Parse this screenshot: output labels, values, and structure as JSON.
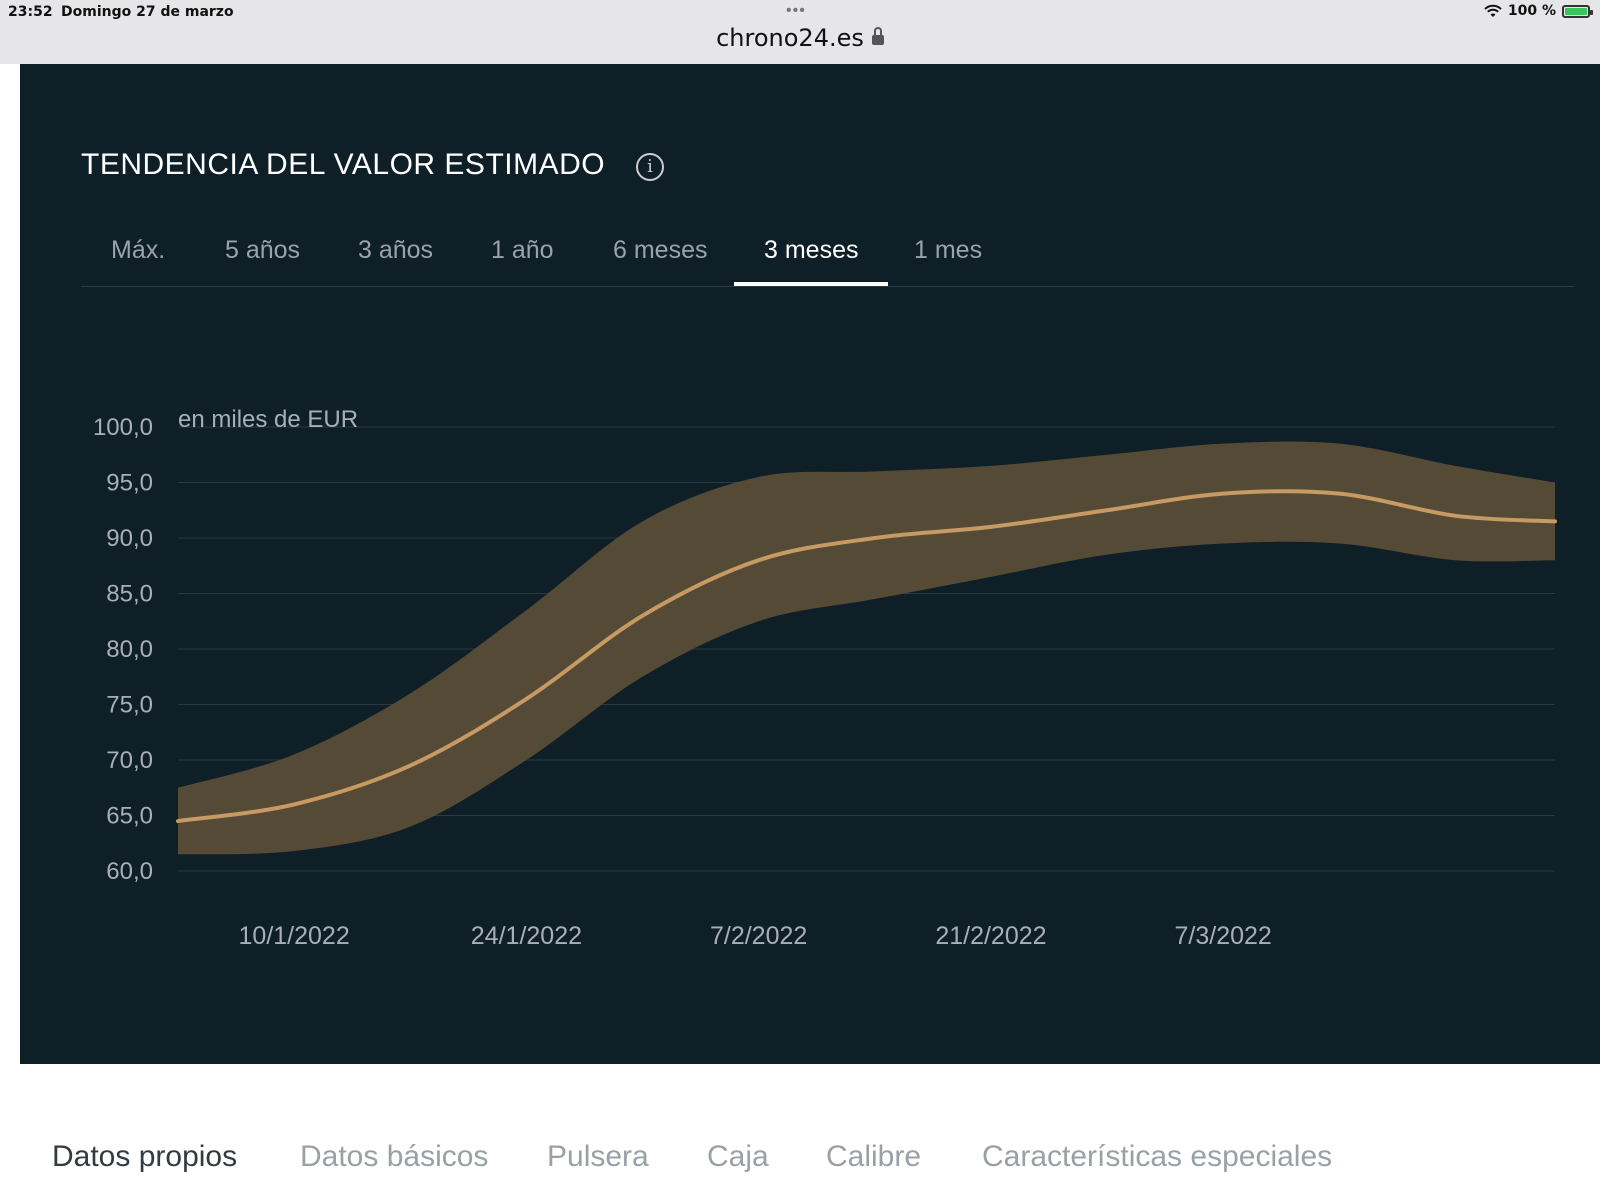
{
  "status_bar": {
    "time": "23:52",
    "date": "Domingo 27 de marzo",
    "battery": "100 %",
    "url": "chrono24.es"
  },
  "section": {
    "title": "TENDENCIA DEL VALOR ESTIMADO",
    "info_glyph": "i",
    "tabs": [
      "Máx.",
      "5 años",
      "3 años",
      "1 año",
      "6 meses",
      "3 meses",
      "1 mes"
    ],
    "active_tab": "3 meses"
  },
  "chart_data": {
    "type": "area",
    "unit_label": "en miles de EUR",
    "ylim": [
      60,
      100
    ],
    "y_ticks": [
      "100,0",
      "95,0",
      "90,0",
      "85,0",
      "80,0",
      "75,0",
      "70,0",
      "65,0",
      "60,0"
    ],
    "x_ticks": [
      "10/1/2022",
      "24/1/2022",
      "7/2/2022",
      "21/2/2022",
      "7/3/2022"
    ],
    "x_range_days": [
      -7,
      76
    ],
    "series": [
      {
        "role": "estimate",
        "x_days": [
          -7,
          0,
          7,
          14,
          21,
          28,
          35,
          42,
          49,
          56,
          63,
          70,
          76
        ],
        "values": [
          64.5,
          66.0,
          69.5,
          75.5,
          83.0,
          88.0,
          90.0,
          91.0,
          92.5,
          94.0,
          94.0,
          92.0,
          91.5
        ]
      },
      {
        "role": "upper_bound",
        "x_days": [
          -7,
          0,
          7,
          14,
          21,
          28,
          35,
          42,
          49,
          56,
          63,
          70,
          76
        ],
        "values": [
          67.5,
          70.5,
          76.0,
          83.5,
          91.5,
          95.5,
          96.0,
          96.5,
          97.5,
          98.5,
          98.5,
          96.5,
          95.0
        ]
      },
      {
        "role": "lower_bound",
        "x_days": [
          -7,
          0,
          7,
          14,
          21,
          28,
          35,
          42,
          49,
          56,
          63,
          70,
          76
        ],
        "values": [
          61.5,
          61.8,
          64.0,
          70.0,
          77.5,
          82.5,
          84.5,
          86.5,
          88.5,
          89.5,
          89.5,
          88.0,
          88.0
        ]
      }
    ],
    "colors": {
      "band": "#5a4d36",
      "line": "#c69a62",
      "grid": "#2a3a44",
      "tick": "#a8b0b5"
    }
  },
  "bottom_nav": {
    "items": [
      "Datos propios",
      "Datos básicos",
      "Pulsera",
      "Caja",
      "Calibre",
      "Características especiales"
    ],
    "active": "Datos propios"
  }
}
